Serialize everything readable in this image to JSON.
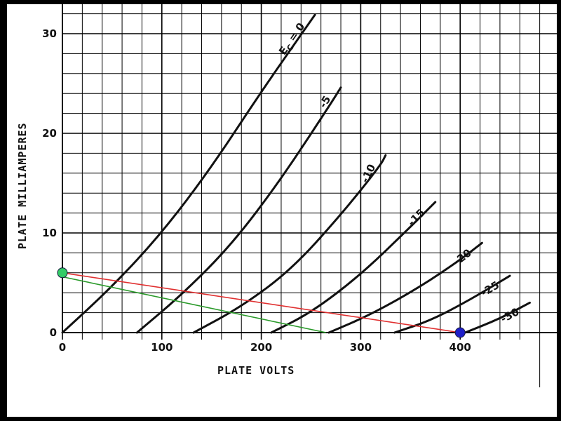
{
  "chart_data": {
    "type": "line",
    "title": "",
    "xlabel": "PLATE VOLTS",
    "ylabel": "PLATE MILLIAMPERES",
    "xlim": [
      0,
      500
    ],
    "ylim": [
      0,
      33
    ],
    "x_ticks": [
      "0",
      "100",
      "200",
      "300",
      "400"
    ],
    "y_ticks": [
      "0",
      "10",
      "20",
      "30"
    ],
    "grid": true,
    "series": [
      {
        "name": "E_C = 0",
        "label": "0",
        "points": [
          [
            0,
            0
          ],
          [
            50,
            4.6
          ],
          [
            100,
            10
          ],
          [
            150,
            16.6
          ],
          [
            200,
            24.2
          ],
          [
            254,
            31.9
          ]
        ]
      },
      {
        "name": "-5",
        "label": "-5",
        "points": [
          [
            75,
            0
          ],
          [
            120,
            3.8
          ],
          [
            170,
            8.8
          ],
          [
            220,
            15.4
          ],
          [
            270,
            23
          ],
          [
            280,
            24.6
          ]
        ]
      },
      {
        "name": "-10",
        "label": "-10",
        "points": [
          [
            132,
            0
          ],
          [
            180,
            2.6
          ],
          [
            230,
            6.3
          ],
          [
            280,
            11.8
          ],
          [
            320,
            16.8
          ],
          [
            325,
            17.8
          ]
        ]
      },
      {
        "name": "-15",
        "label": "-15",
        "points": [
          [
            210,
            0
          ],
          [
            250,
            2
          ],
          [
            300,
            5.8
          ],
          [
            350,
            10.6
          ],
          [
            375,
            13.1
          ]
        ]
      },
      {
        "name": "-20",
        "label": "-20",
        "points": [
          [
            268,
            0
          ],
          [
            310,
            1.8
          ],
          [
            360,
            4.6
          ],
          [
            400,
            7.3
          ],
          [
            422,
            9
          ]
        ]
      },
      {
        "name": "-25",
        "label": "-25",
        "points": [
          [
            334,
            0
          ],
          [
            370,
            1.2
          ],
          [
            410,
            3.3
          ],
          [
            450,
            5.7
          ]
        ]
      },
      {
        "name": "-30",
        "label": "-30",
        "points": [
          [
            405,
            0
          ],
          [
            440,
            1.4
          ],
          [
            470,
            3
          ]
        ]
      }
    ],
    "load_lines": [
      {
        "color": "#e03030",
        "from": [
          0,
          6
        ],
        "to": [
          400,
          0
        ]
      },
      {
        "color": "#2a9a2a",
        "from": [
          0,
          5.6
        ],
        "to": [
          265,
          0
        ]
      }
    ],
    "markers": [
      {
        "color": "#33cc66",
        "x": 0,
        "y": 6
      },
      {
        "color": "#1f1fc8",
        "x": 400,
        "y": 0
      }
    ],
    "curve_label_prefix": "E",
    "curve_label_subscript": "C",
    "curve_label_equals": "="
  }
}
